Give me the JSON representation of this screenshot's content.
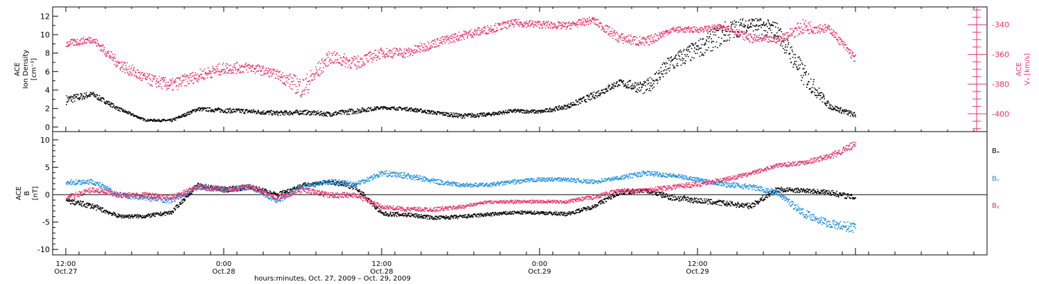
{
  "chart_data": [
    {
      "type": "scatter",
      "panel": "top",
      "ylabel_left": [
        "ACE",
        "Ion Density",
        "[cm⁻³]"
      ],
      "ylabel_right": [
        "ACE",
        "Vₓ [km/s]"
      ],
      "ylim_left": [
        -0.5,
        13
      ],
      "ylim_right": [
        -412,
        -328
      ],
      "yticks_left": [
        "0",
        "2",
        "4",
        "6",
        "8",
        "10",
        "12"
      ],
      "yticks_right": [
        "-340",
        "-360",
        "-380",
        "-400"
      ],
      "series": [
        {
          "color": "#000000",
          "axis": "left",
          "x": [
            0,
            2,
            4,
            6,
            8,
            10,
            12,
            14,
            16,
            18,
            20,
            22,
            24,
            26,
            28,
            30,
            32,
            34,
            36,
            38,
            40,
            42,
            44,
            46,
            48,
            50,
            52,
            54,
            56,
            58,
            60
          ],
          "y": [
            2.5,
            3.3,
            1.8,
            0.7,
            0.6,
            1.8,
            1.6,
            1.5,
            1.3,
            1.4,
            1.2,
            1.5,
            2.0,
            1.8,
            1.4,
            1.0,
            1.2,
            1.6,
            1.5,
            2.0,
            3.0,
            4.5,
            3.5,
            6.0,
            7.5,
            9.0,
            10.5,
            9.5,
            4.5,
            2.0,
            1.0
          ],
          "y2": [
            3.5,
            3.9,
            2.2,
            0.9,
            0.9,
            2.2,
            2.1,
            2.0,
            1.8,
            1.9,
            1.7,
            2.1,
            2.3,
            2.2,
            1.8,
            1.5,
            1.6,
            2.0,
            1.9,
            2.5,
            3.8,
            5.2,
            5.0,
            8.0,
            9.5,
            11.5,
            12.0,
            11.5,
            7.0,
            2.6,
            1.6
          ]
        },
        {
          "color": "#e8336b",
          "axis": "right",
          "x": [
            0,
            2,
            4,
            6,
            8,
            10,
            12,
            14,
            16,
            18,
            20,
            22,
            24,
            26,
            28,
            30,
            32,
            34,
            36,
            38,
            40,
            42,
            44,
            46,
            48,
            50,
            52,
            54,
            56,
            58,
            60
          ],
          "y": [
            -355,
            -352,
            -370,
            -380,
            -385,
            -378,
            -373,
            -372,
            -376,
            -390,
            -366,
            -370,
            -362,
            -362,
            -355,
            -350,
            -346,
            -341,
            -342,
            -343,
            -339,
            -352,
            -355,
            -345,
            -345,
            -343,
            -352,
            -352,
            -346,
            -345,
            -366
          ],
          "y2": [
            -350,
            -347,
            -362,
            -372,
            -376,
            -370,
            -365,
            -365,
            -370,
            -375,
            -357,
            -361,
            -355,
            -355,
            -349,
            -344,
            -340,
            -336,
            -337,
            -338,
            -334,
            -345,
            -348,
            -341,
            -341,
            -339,
            -346,
            -348,
            -336,
            -340,
            -360
          ]
        }
      ]
    },
    {
      "type": "scatter",
      "panel": "bottom",
      "ylabel_left": [
        "ACE",
        "B",
        "[nT]"
      ],
      "ylim": [
        -11,
        11.5
      ],
      "yticks": [
        "-10",
        "-5",
        "0",
        "5",
        "10"
      ],
      "legend": [
        {
          "name": "Bₓ",
          "color": "#000000"
        },
        {
          "name": "Bᵧ",
          "color": "#1f8fe0"
        },
        {
          "name": "Bᵪ",
          "color": "#e8336b"
        }
      ],
      "series": [
        {
          "name": "Bₓ",
          "color": "#000000",
          "x": [
            0,
            2,
            4,
            6,
            8,
            10,
            12,
            14,
            16,
            18,
            20,
            22,
            24,
            26,
            28,
            30,
            32,
            34,
            36,
            38,
            40,
            42,
            44,
            46,
            48,
            50,
            52,
            54,
            56,
            58,
            60
          ],
          "y": [
            -1.5,
            -2.5,
            -4.2,
            -4.2,
            -3.5,
            1.5,
            0.5,
            1.0,
            -0.5,
            1.5,
            2.0,
            1.0,
            -3.8,
            -4.0,
            -4.5,
            -4.3,
            -3.9,
            -3.5,
            -3.5,
            -3.8,
            -2.5,
            0.0,
            0.5,
            -1.0,
            -1.5,
            -2.0,
            -2.5,
            0.5,
            0.5,
            0.0,
            -1.0
          ],
          "y2": [
            -0.5,
            -1.5,
            -3.5,
            -3.5,
            -2.8,
            2.2,
            1.5,
            2.0,
            0.5,
            2.2,
            2.8,
            2.0,
            -3.0,
            -3.2,
            -3.8,
            -3.6,
            -3.2,
            -2.9,
            -2.9,
            -3.1,
            -1.8,
            1.0,
            1.2,
            0.2,
            -0.5,
            -1.0,
            -1.5,
            1.5,
            1.2,
            1.0,
            0.0
          ]
        },
        {
          "name": "Bᵧ",
          "color": "#1f8fe0",
          "x": [
            0,
            2,
            4,
            6,
            8,
            10,
            12,
            14,
            16,
            18,
            20,
            22,
            24,
            26,
            28,
            30,
            32,
            34,
            36,
            38,
            40,
            42,
            44,
            46,
            48,
            50,
            52,
            54,
            56,
            58,
            60
          ],
          "y": [
            1.8,
            2.0,
            -0.5,
            -1.0,
            -1.5,
            1.0,
            0.5,
            1.0,
            -1.5,
            1.0,
            2.0,
            1.5,
            3.5,
            3.0,
            2.0,
            1.5,
            1.5,
            2.0,
            2.5,
            2.5,
            2.0,
            2.8,
            3.5,
            3.2,
            2.5,
            1.5,
            1.0,
            0.0,
            -4.0,
            -6.0,
            -7.0
          ],
          "y2": [
            2.8,
            3.0,
            0.5,
            0.0,
            -0.5,
            2.0,
            1.5,
            2.0,
            -0.5,
            2.0,
            3.0,
            2.5,
            4.5,
            4.0,
            3.0,
            2.2,
            2.2,
            2.8,
            3.2,
            3.2,
            2.8,
            3.5,
            4.5,
            4.0,
            3.2,
            2.5,
            2.0,
            1.0,
            -2.5,
            -4.5,
            -5.0
          ]
        },
        {
          "name": "Bᵪ",
          "color": "#e8336b",
          "x": [
            0,
            2,
            4,
            6,
            8,
            10,
            12,
            14,
            16,
            18,
            20,
            22,
            24,
            26,
            28,
            30,
            32,
            34,
            36,
            38,
            40,
            42,
            44,
            46,
            48,
            50,
            52,
            54,
            56,
            58,
            60
          ],
          "y": [
            -1.0,
            0.5,
            -0.5,
            -0.5,
            -1.0,
            1.0,
            0.5,
            1.0,
            -1.0,
            0.5,
            -0.5,
            -0.5,
            -2.5,
            -3.0,
            -3.0,
            -2.5,
            -1.5,
            -1.5,
            -1.5,
            -1.5,
            -0.8,
            0.5,
            0.5,
            1.0,
            1.5,
            2.5,
            3.5,
            5.0,
            5.5,
            6.5,
            8.5
          ],
          "y2": [
            0.0,
            1.5,
            0.5,
            0.5,
            0.0,
            2.0,
            1.5,
            2.0,
            0.0,
            1.5,
            0.5,
            0.5,
            -1.8,
            -2.2,
            -2.2,
            -1.8,
            -1.0,
            -0.9,
            -0.9,
            -0.9,
            0.0,
            1.2,
            1.2,
            2.0,
            2.5,
            3.2,
            4.3,
            5.8,
            6.4,
            7.6,
            10.0
          ]
        }
      ]
    }
  ],
  "xaxis": {
    "xlim": [
      -1,
      70
    ],
    "major_x": [
      0,
      12,
      24,
      36,
      48,
      60
    ],
    "minor_step": 2,
    "tick_labels": [
      {
        "x": 0,
        "time": "12:00",
        "date": "Oct.27"
      },
      {
        "x": 12,
        "time": "0:00",
        "date": "Oct.28"
      },
      {
        "x": 24,
        "time": "12:00",
        "date": "Oct.28"
      },
      {
        "x": 36,
        "time": "0:00",
        "date": "Oct.29"
      },
      {
        "x": 48,
        "time": "12:00",
        "date": "Oct.29"
      }
    ],
    "title": "hours:minutes, Oct. 27, 2009 – Oct. 29, 2009"
  }
}
